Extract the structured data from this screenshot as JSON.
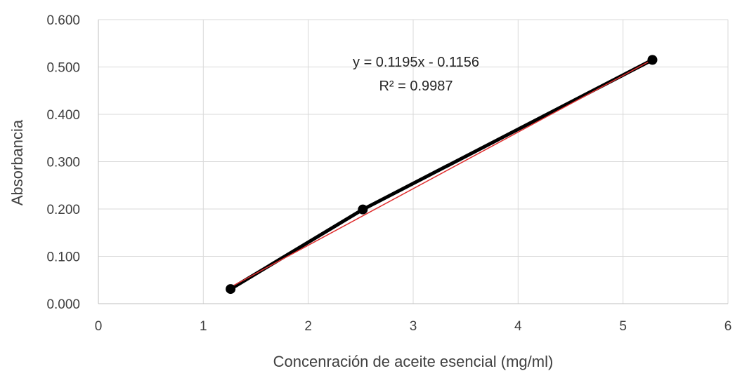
{
  "chart_data": {
    "type": "scatter",
    "title": "",
    "xlabel": "Concenración de aceite esencial (mg/ml)",
    "ylabel": "Absorbancia",
    "xlim": [
      0,
      6
    ],
    "ylim": [
      0,
      0.6
    ],
    "x_ticks": [
      "0",
      "1",
      "2",
      "3",
      "4",
      "5",
      "6"
    ],
    "y_ticks": [
      "0.000",
      "0.100",
      "0.200",
      "0.300",
      "0.400",
      "0.500",
      "0.600"
    ],
    "grid": true,
    "series": [
      {
        "x": [
          1.26,
          2.52,
          5.28
        ],
        "y": [
          0.031,
          0.199,
          0.515
        ],
        "color": "#000000",
        "line": true,
        "markers": true
      }
    ],
    "trendline": {
      "slope": 0.1195,
      "intercept": -0.1156,
      "x_range": [
        1.26,
        5.28
      ],
      "color": "#e03030",
      "equation": "y = 0.1195x - 0.1156",
      "r2_label": "R² = 0.9987"
    }
  }
}
